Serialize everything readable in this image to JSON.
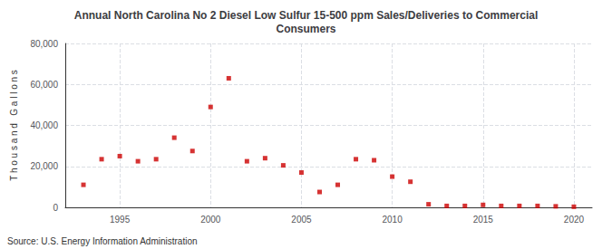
{
  "chart_data": {
    "type": "scatter",
    "title": "Annual North Carolina No 2 Diesel Low Sulfur 15-500 ppm Sales/Deliveries to Commercial\nConsumers",
    "ylabel": "T h o u s a n d   G a l l o n s",
    "annotations": [
      "Source: U.S. Energy Information Administration"
    ],
    "x": [
      1993,
      1994,
      1995,
      1996,
      1997,
      1998,
      1999,
      2000,
      2001,
      2002,
      2003,
      2004,
      2005,
      2006,
      2007,
      2008,
      2009,
      2010,
      2011,
      2012,
      2013,
      2014,
      2015,
      2016,
      2017,
      2018,
      2019,
      2020
    ],
    "values": [
      11000,
      23500,
      25000,
      22500,
      23500,
      34000,
      27500,
      49000,
      63000,
      22500,
      24000,
      20500,
      17000,
      7500,
      11000,
      23500,
      23000,
      15000,
      12500,
      1500,
      700,
      700,
      1200,
      700,
      700,
      700,
      500,
      300
    ],
    "color": "#cc0000",
    "marker": "square",
    "xlim": [
      1992,
      2021
    ],
    "xticks": [
      1995,
      2000,
      2005,
      2010,
      2015,
      2020
    ],
    "ylim": [
      0,
      80000
    ],
    "yticks": [
      0,
      {
        "value": 20000,
        "label": "20,000"
      },
      {
        "value": 40000,
        "label": "40,000"
      },
      {
        "value": 60000,
        "label": "60,000"
      },
      {
        "value": 80000,
        "label": "80,000"
      }
    ],
    "grid": true
  }
}
